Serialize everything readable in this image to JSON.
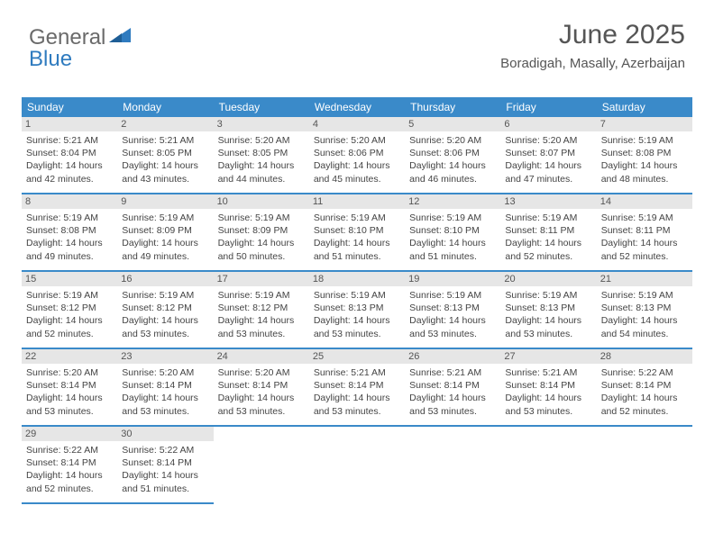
{
  "logo": {
    "text1": "General",
    "text2": "Blue"
  },
  "title": "June 2025",
  "subtitle": "Boradigah, Masally, Azerbaijan",
  "colors": {
    "header_bg": "#3a8ac9",
    "header_fg": "#ffffff",
    "daynum_bg": "#e6e6e6",
    "border": "#3a8ac9",
    "text": "#444444",
    "logo_gray": "#6a6a6a",
    "logo_blue": "#2f7bbf"
  },
  "weekdays": [
    "Sunday",
    "Monday",
    "Tuesday",
    "Wednesday",
    "Thursday",
    "Friday",
    "Saturday"
  ],
  "days": [
    {
      "n": "1",
      "sunrise": "5:21 AM",
      "sunset": "8:04 PM",
      "dh": "14",
      "dm": "42"
    },
    {
      "n": "2",
      "sunrise": "5:21 AM",
      "sunset": "8:05 PM",
      "dh": "14",
      "dm": "43"
    },
    {
      "n": "3",
      "sunrise": "5:20 AM",
      "sunset": "8:05 PM",
      "dh": "14",
      "dm": "44"
    },
    {
      "n": "4",
      "sunrise": "5:20 AM",
      "sunset": "8:06 PM",
      "dh": "14",
      "dm": "45"
    },
    {
      "n": "5",
      "sunrise": "5:20 AM",
      "sunset": "8:06 PM",
      "dh": "14",
      "dm": "46"
    },
    {
      "n": "6",
      "sunrise": "5:20 AM",
      "sunset": "8:07 PM",
      "dh": "14",
      "dm": "47"
    },
    {
      "n": "7",
      "sunrise": "5:19 AM",
      "sunset": "8:08 PM",
      "dh": "14",
      "dm": "48"
    },
    {
      "n": "8",
      "sunrise": "5:19 AM",
      "sunset": "8:08 PM",
      "dh": "14",
      "dm": "49"
    },
    {
      "n": "9",
      "sunrise": "5:19 AM",
      "sunset": "8:09 PM",
      "dh": "14",
      "dm": "49"
    },
    {
      "n": "10",
      "sunrise": "5:19 AM",
      "sunset": "8:09 PM",
      "dh": "14",
      "dm": "50"
    },
    {
      "n": "11",
      "sunrise": "5:19 AM",
      "sunset": "8:10 PM",
      "dh": "14",
      "dm": "51"
    },
    {
      "n": "12",
      "sunrise": "5:19 AM",
      "sunset": "8:10 PM",
      "dh": "14",
      "dm": "51"
    },
    {
      "n": "13",
      "sunrise": "5:19 AM",
      "sunset": "8:11 PM",
      "dh": "14",
      "dm": "52"
    },
    {
      "n": "14",
      "sunrise": "5:19 AM",
      "sunset": "8:11 PM",
      "dh": "14",
      "dm": "52"
    },
    {
      "n": "15",
      "sunrise": "5:19 AM",
      "sunset": "8:12 PM",
      "dh": "14",
      "dm": "52"
    },
    {
      "n": "16",
      "sunrise": "5:19 AM",
      "sunset": "8:12 PM",
      "dh": "14",
      "dm": "53"
    },
    {
      "n": "17",
      "sunrise": "5:19 AM",
      "sunset": "8:12 PM",
      "dh": "14",
      "dm": "53"
    },
    {
      "n": "18",
      "sunrise": "5:19 AM",
      "sunset": "8:13 PM",
      "dh": "14",
      "dm": "53"
    },
    {
      "n": "19",
      "sunrise": "5:19 AM",
      "sunset": "8:13 PM",
      "dh": "14",
      "dm": "53"
    },
    {
      "n": "20",
      "sunrise": "5:19 AM",
      "sunset": "8:13 PM",
      "dh": "14",
      "dm": "53"
    },
    {
      "n": "21",
      "sunrise": "5:19 AM",
      "sunset": "8:13 PM",
      "dh": "14",
      "dm": "54"
    },
    {
      "n": "22",
      "sunrise": "5:20 AM",
      "sunset": "8:14 PM",
      "dh": "14",
      "dm": "53"
    },
    {
      "n": "23",
      "sunrise": "5:20 AM",
      "sunset": "8:14 PM",
      "dh": "14",
      "dm": "53"
    },
    {
      "n": "24",
      "sunrise": "5:20 AM",
      "sunset": "8:14 PM",
      "dh": "14",
      "dm": "53"
    },
    {
      "n": "25",
      "sunrise": "5:21 AM",
      "sunset": "8:14 PM",
      "dh": "14",
      "dm": "53"
    },
    {
      "n": "26",
      "sunrise": "5:21 AM",
      "sunset": "8:14 PM",
      "dh": "14",
      "dm": "53"
    },
    {
      "n": "27",
      "sunrise": "5:21 AM",
      "sunset": "8:14 PM",
      "dh": "14",
      "dm": "53"
    },
    {
      "n": "28",
      "sunrise": "5:22 AM",
      "sunset": "8:14 PM",
      "dh": "14",
      "dm": "52"
    },
    {
      "n": "29",
      "sunrise": "5:22 AM",
      "sunset": "8:14 PM",
      "dh": "14",
      "dm": "52"
    },
    {
      "n": "30",
      "sunrise": "5:22 AM",
      "sunset": "8:14 PM",
      "dh": "14",
      "dm": "51"
    }
  ],
  "labels": {
    "sunrise": "Sunrise: ",
    "sunset": "Sunset: ",
    "daylight1": "Daylight: ",
    "daylight2": " hours and ",
    "daylight3": " minutes."
  }
}
